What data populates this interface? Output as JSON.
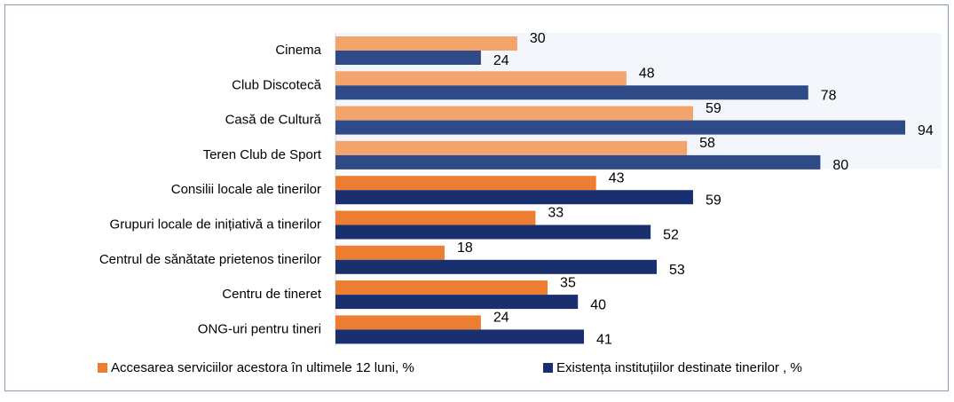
{
  "chart_data": {
    "type": "barh",
    "categories": [
      "Cinema",
      "Club Discotecă",
      "Casă de Cultură",
      "Teren Club de Sport",
      "Consilii locale ale tinerilor",
      "Grupuri locale de inițiativă a tinerilor",
      "Centrul de sănătate prietenos tinerilor",
      "Centru de tineret",
      "ONG-uri pentru tineri"
    ],
    "series": [
      {
        "name": "Accesarea serviciilor acestora în ultimele 12 luni, %",
        "color": "#ed7d31",
        "colors": [
          "#f2a46c",
          "#f2a46c",
          "#f2a46c",
          "#f2a46c",
          "#ed7d31",
          "#ed7d31",
          "#ed7d31",
          "#ed7d31",
          "#ed7d31"
        ],
        "values": [
          30,
          48,
          59,
          58,
          43,
          33,
          18,
          35,
          24
        ]
      },
      {
        "name": "Existența instituțiilor destinate tinerilor , %",
        "color": "#1a2f6e",
        "colors": [
          "#2e4a87",
          "#2e4a87",
          "#2e4a87",
          "#2e4a87",
          "#1a2f6e",
          "#1a2f6e",
          "#1a2f6e",
          "#1a2f6e",
          "#1a2f6e"
        ],
        "values": [
          24,
          78,
          94,
          80,
          59,
          52,
          53,
          40,
          41
        ]
      }
    ],
    "xlim": [
      0,
      100
    ],
    "legend": "bottom"
  }
}
